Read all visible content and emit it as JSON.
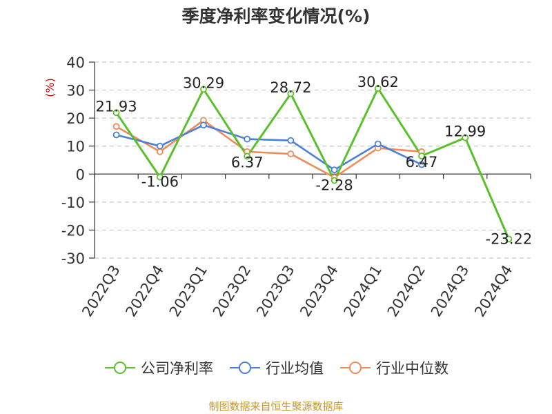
{
  "chart_data": {
    "type": "line",
    "title": "季度净利率变化情况(%)",
    "ylabel": "(%)",
    "ylim": [
      -30,
      40
    ],
    "yticks": [
      40,
      30,
      20,
      10,
      0,
      -10,
      -20,
      -30
    ],
    "categories": [
      "2022Q3",
      "2022Q4",
      "2023Q1",
      "2023Q2",
      "2023Q3",
      "2023Q4",
      "2024Q1",
      "2024Q2",
      "2024Q3",
      "2024Q4"
    ],
    "grid": true,
    "legend_position": "bottom",
    "series": [
      {
        "name": "公司净利率",
        "color": "#5ac02a",
        "values": [
          21.93,
          -1.06,
          30.29,
          6.37,
          28.72,
          -2.28,
          30.62,
          6.47,
          12.99,
          -23.22
        ],
        "labels": [
          "21.93",
          "-1.06",
          "30.29",
          "6.37",
          "28.72",
          "-2.28",
          "30.62",
          "6.47",
          "12.99",
          "-23.22"
        ]
      },
      {
        "name": "行业均值",
        "color": "#4a7fdc",
        "values": [
          14.0,
          10.0,
          17.5,
          12.5,
          12.0,
          1.5,
          10.8,
          3.4,
          null,
          null
        ]
      },
      {
        "name": "行业中位数",
        "color": "#f08c5a",
        "values": [
          17.0,
          8.0,
          19.2,
          8.0,
          7.2,
          -1.2,
          9.3,
          8.0,
          null,
          null
        ]
      }
    ]
  },
  "footer": {
    "source": "制图数据来自恒生聚源数据库"
  }
}
